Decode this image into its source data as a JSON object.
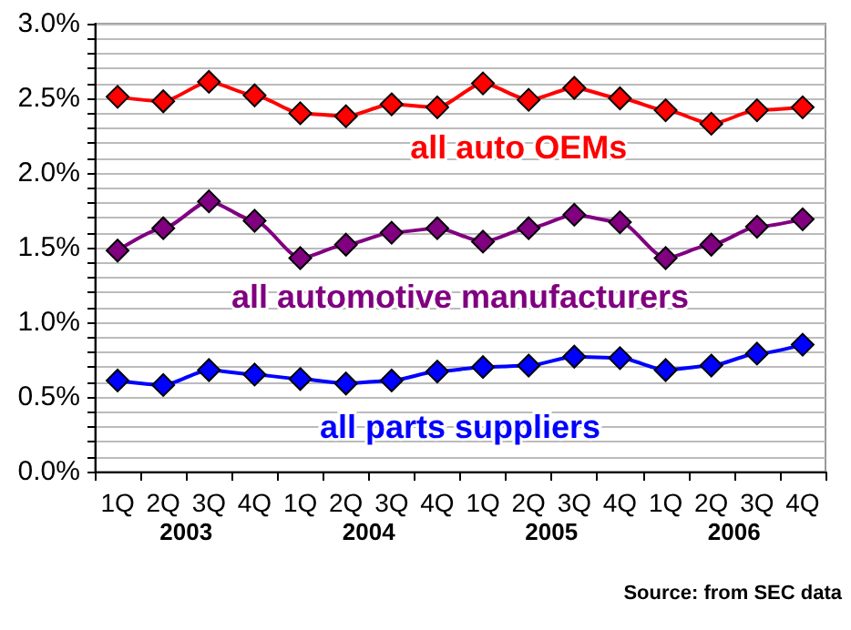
{
  "chart_data": {
    "type": "line",
    "categories": [
      "1Q",
      "2Q",
      "3Q",
      "4Q",
      "1Q",
      "2Q",
      "3Q",
      "4Q",
      "1Q",
      "2Q",
      "3Q",
      "4Q",
      "1Q",
      "2Q",
      "3Q",
      "4Q"
    ],
    "series": [
      {
        "name": "all auto OEMs",
        "color": "#ff0000",
        "values": [
          2.51,
          2.48,
          2.61,
          2.52,
          2.4,
          2.38,
          2.46,
          2.44,
          2.6,
          2.49,
          2.57,
          2.5,
          2.42,
          2.33,
          2.42,
          2.44
        ]
      },
      {
        "name": "all automotive manufacturers",
        "color": "#800080",
        "values": [
          1.48,
          1.63,
          1.81,
          1.68,
          1.43,
          1.52,
          1.6,
          1.63,
          1.54,
          1.63,
          1.72,
          1.67,
          1.43,
          1.52,
          1.64,
          1.69
        ]
      },
      {
        "name": "all parts suppliers",
        "color": "#0000ff",
        "values": [
          0.61,
          0.58,
          0.68,
          0.65,
          0.62,
          0.59,
          0.61,
          0.67,
          0.7,
          0.71,
          0.77,
          0.76,
          0.68,
          0.71,
          0.79,
          0.85
        ]
      }
    ],
    "ylim": [
      0,
      3
    ],
    "yticks": [
      {
        "value": 0,
        "label": "0.0%"
      },
      {
        "value": 0.1,
        "label": null
      },
      {
        "value": 0.2,
        "label": null
      },
      {
        "value": 0.3,
        "label": null
      },
      {
        "value": 0.4,
        "label": null
      },
      {
        "value": 0.5,
        "label": "0.5%"
      },
      {
        "value": 0.6,
        "label": null
      },
      {
        "value": 0.7,
        "label": null
      },
      {
        "value": 0.8,
        "label": null
      },
      {
        "value": 0.9,
        "label": null
      },
      {
        "value": 1,
        "label": "1.0%"
      },
      {
        "value": 1.1,
        "label": null
      },
      {
        "value": 1.2,
        "label": null
      },
      {
        "value": 1.3,
        "label": null
      },
      {
        "value": 1.4,
        "label": null
      },
      {
        "value": 1.5,
        "label": "1.5%"
      },
      {
        "value": 1.6,
        "label": null
      },
      {
        "value": 1.7,
        "label": null
      },
      {
        "value": 1.8,
        "label": null
      },
      {
        "value": 1.9,
        "label": null
      },
      {
        "value": 2,
        "label": "2.0%"
      },
      {
        "value": 2.1,
        "label": null
      },
      {
        "value": 2.2,
        "label": null
      },
      {
        "value": 2.3,
        "label": null
      },
      {
        "value": 2.4,
        "label": null
      },
      {
        "value": 2.5,
        "label": "2.5%"
      },
      {
        "value": 2.6,
        "label": null
      },
      {
        "value": 2.7,
        "label": null
      },
      {
        "value": 2.8,
        "label": null
      },
      {
        "value": 2.9,
        "label": null
      },
      {
        "value": 3,
        "label": "3.0%"
      }
    ],
    "grid": "y",
    "marker": "diamond",
    "line_style": "solid",
    "legend": false,
    "annotations": [
      "2003",
      "2004",
      "2005",
      "2006",
      "Source: from SEC data"
    ]
  }
}
